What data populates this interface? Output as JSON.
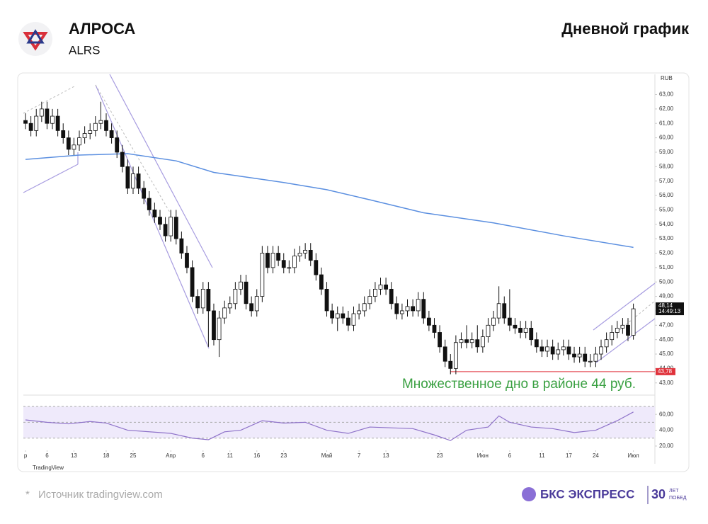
{
  "header": {
    "title": "АЛРОСА",
    "ticker": "ALRS",
    "chart_label": "Дневной график"
  },
  "chart_data": {
    "type": "candlestick",
    "currency": "RUB",
    "open": [
      61.2,
      61.0,
      60.5,
      61.5,
      62.0,
      61.0,
      61.5,
      60.5,
      60.0,
      59.2,
      59.5,
      60.0,
      60.3,
      60.5,
      61.0,
      61.2,
      60.5,
      60.0,
      59.0,
      58.0,
      56.5,
      57.5,
      56.5,
      55.8,
      55.0,
      54.5,
      54.0,
      53.2,
      54.5,
      53.0,
      52.0,
      51.0,
      49.0,
      48.2,
      49.5,
      48.0,
      46.0,
      47.5,
      48.2,
      48.5,
      49.5,
      50.0,
      48.5,
      48.0,
      49.0,
      52.0,
      51.0,
      52.0,
      51.5,
      51.0,
      51.0,
      51.8,
      52.0,
      52.2,
      51.5,
      50.5,
      49.5,
      48.0,
      47.5,
      47.8,
      47.5,
      47.0,
      47.8,
      48.0,
      48.5,
      49.0,
      49.5,
      49.8,
      49.5,
      48.5,
      47.8,
      48.0,
      48.3,
      48.0,
      48.8,
      47.5,
      47.0,
      46.5,
      45.5,
      44.5,
      44.0,
      45.8,
      46.0,
      45.8,
      46.0,
      45.5,
      46.2,
      47.0,
      47.5,
      48.5,
      47.5,
      47.0,
      46.8,
      46.5,
      46.8,
      46.0,
      45.5,
      45.2,
      45.5,
      45.0,
      45.3,
      45.5,
      45.0,
      44.8,
      45.0,
      44.5,
      44.5,
      45.0,
      45.5,
      46.0,
      46.5,
      46.8,
      47.0,
      46.3
    ],
    "high": [
      61.7,
      61.5,
      62.0,
      62.5,
      62.5,
      62.0,
      62.0,
      61.0,
      60.5,
      60.0,
      60.5,
      60.8,
      61.0,
      61.5,
      62.5,
      61.7,
      61.0,
      60.5,
      59.5,
      58.5,
      58.0,
      58.0,
      57.0,
      56.3,
      55.5,
      55.0,
      54.5,
      55.0,
      55.0,
      53.5,
      52.5,
      51.5,
      49.5,
      50.0,
      50.0,
      48.5,
      48.0,
      48.7,
      49.0,
      50.0,
      50.5,
      50.5,
      49.0,
      49.5,
      52.5,
      52.5,
      52.5,
      52.5,
      52.0,
      51.5,
      52.3,
      52.5,
      52.7,
      52.7,
      52.0,
      51.0,
      50.0,
      48.5,
      48.3,
      48.3,
      48.0,
      48.3,
      48.5,
      49.0,
      49.5,
      50.0,
      50.3,
      50.3,
      50.0,
      49.0,
      48.5,
      48.8,
      48.8,
      49.3,
      49.3,
      48.0,
      47.5,
      47.0,
      46.0,
      45.0,
      46.3,
      46.5,
      47.0,
      46.5,
      47.0,
      46.7,
      47.5,
      48.0,
      49.7,
      49.0,
      49.5,
      47.5,
      47.3,
      47.3,
      47.3,
      46.5,
      46.0,
      46.0,
      46.0,
      45.8,
      46.0,
      46.0,
      45.5,
      45.5,
      45.5,
      45.0,
      45.5,
      46.0,
      46.5,
      47.0,
      47.3,
      47.5,
      47.5,
      48.5
    ],
    "low": [
      60.6,
      60.1,
      60.1,
      61.1,
      60.6,
      60.6,
      60.1,
      59.6,
      58.8,
      58.8,
      59.1,
      59.6,
      59.9,
      60.1,
      60.6,
      60.1,
      59.6,
      58.6,
      57.6,
      56.1,
      56.1,
      56.1,
      55.4,
      54.6,
      54.1,
      53.6,
      52.8,
      52.8,
      52.6,
      51.6,
      50.6,
      48.6,
      47.8,
      47.8,
      45.5,
      45.6,
      44.8,
      47.1,
      47.8,
      48.1,
      49.1,
      48.1,
      47.6,
      47.6,
      48.6,
      50.6,
      50.6,
      51.1,
      50.6,
      50.6,
      50.6,
      51.4,
      51.6,
      51.1,
      50.1,
      49.1,
      47.6,
      47.1,
      46.6,
      47.1,
      46.6,
      46.6,
      47.4,
      47.6,
      48.1,
      48.6,
      49.1,
      49.1,
      48.1,
      47.4,
      47.4,
      47.6,
      47.6,
      47.6,
      47.1,
      46.6,
      46.1,
      45.1,
      44.1,
      43.6,
      43.6,
      45.4,
      45.4,
      45.4,
      45.1,
      45.1,
      45.8,
      46.6,
      47.1,
      47.1,
      46.6,
      46.4,
      46.1,
      46.1,
      45.6,
      45.1,
      44.8,
      44.8,
      44.6,
      44.6,
      44.9,
      44.6,
      44.4,
      44.4,
      44.1,
      44.1,
      44.1,
      44.6,
      45.1,
      45.6,
      46.1,
      46.4,
      45.9,
      46.0
    ],
    "close": [
      61.0,
      60.5,
      61.5,
      62.0,
      61.0,
      61.5,
      60.5,
      60.0,
      59.2,
      59.5,
      60.0,
      60.3,
      60.5,
      61.0,
      61.2,
      60.5,
      60.0,
      59.0,
      58.0,
      56.5,
      57.5,
      56.5,
      55.8,
      55.0,
      54.5,
      54.0,
      53.2,
      54.5,
      53.0,
      52.0,
      51.0,
      49.0,
      48.2,
      49.5,
      48.0,
      46.0,
      47.5,
      48.2,
      48.5,
      49.5,
      50.0,
      48.5,
      48.0,
      49.0,
      52.0,
      51.0,
      52.0,
      51.5,
      51.0,
      51.0,
      51.8,
      52.0,
      52.2,
      51.5,
      50.5,
      49.5,
      48.0,
      47.5,
      47.8,
      47.5,
      47.0,
      47.8,
      48.0,
      48.5,
      49.0,
      49.5,
      49.8,
      49.5,
      48.5,
      47.8,
      48.0,
      48.3,
      48.0,
      48.8,
      47.5,
      47.0,
      46.5,
      45.5,
      44.5,
      44.0,
      45.8,
      46.0,
      45.8,
      46.0,
      45.5,
      46.2,
      47.0,
      47.5,
      48.5,
      47.5,
      47.0,
      46.8,
      46.5,
      46.8,
      46.0,
      45.5,
      45.2,
      45.5,
      45.0,
      45.3,
      45.5,
      45.0,
      44.8,
      45.0,
      44.5,
      44.5,
      45.0,
      45.5,
      46.0,
      46.5,
      46.8,
      47.0,
      46.3,
      48.14
    ],
    "xlim": [
      -0.4,
      117
    ],
    "ylim": [
      42.3,
      64.4
    ],
    "yticks": [
      {
        "value": 43,
        "label": "43,00"
      },
      {
        "value": 44,
        "label": "44,00"
      },
      {
        "value": 45,
        "label": "45,00"
      },
      {
        "value": 46,
        "label": "46,00"
      },
      {
        "value": 47,
        "label": "47,00"
      },
      {
        "value": 48,
        "label": "48,00"
      },
      {
        "value": 49,
        "label": "49,00"
      },
      {
        "value": 50,
        "label": "50,00"
      },
      {
        "value": 51,
        "label": "51,00"
      },
      {
        "value": 52,
        "label": "52,00"
      },
      {
        "value": 53,
        "label": "53,00"
      },
      {
        "value": 54,
        "label": "54,00"
      },
      {
        "value": 55,
        "label": "55,00"
      },
      {
        "value": 56,
        "label": "56,00"
      },
      {
        "value": 57,
        "label": "57,00"
      },
      {
        "value": 58,
        "label": "58,00"
      },
      {
        "value": 59,
        "label": "59,00"
      },
      {
        "value": 60,
        "label": "60,00"
      },
      {
        "value": 61,
        "label": "61,00"
      },
      {
        "value": 62,
        "label": "62,00"
      },
      {
        "value": 63,
        "label": "63,00"
      }
    ],
    "xticks": [
      {
        "value": 0,
        "label": "р"
      },
      {
        "value": 4,
        "label": "6"
      },
      {
        "value": 9,
        "label": "13"
      },
      {
        "value": 15,
        "label": "18"
      },
      {
        "value": 20,
        "label": "25"
      },
      {
        "value": 27,
        "label": "Апр"
      },
      {
        "value": 33,
        "label": "6"
      },
      {
        "value": 38,
        "label": "11"
      },
      {
        "value": 43,
        "label": "16"
      },
      {
        "value": 48,
        "label": "23"
      },
      {
        "value": 56,
        "label": "Май"
      },
      {
        "value": 62,
        "label": "7"
      },
      {
        "value": 67,
        "label": "13"
      },
      {
        "value": 77,
        "label": "23"
      },
      {
        "value": 85,
        "label": "Июн"
      },
      {
        "value": 90,
        "label": "6"
      },
      {
        "value": 96,
        "label": "11"
      },
      {
        "value": 101,
        "label": "17"
      },
      {
        "value": 106,
        "label": "24"
      },
      {
        "value": 113,
        "label": "Июл"
      }
    ],
    "last_price": {
      "value": 48.14,
      "label": "48,14"
    },
    "time": "14:49:13",
    "level": {
      "value": 43.78,
      "label": "43,78"
    },
    "annotation": "Множественное дно в районе 44 руб.",
    "ma": {
      "color": "#5b8fe0",
      "x": [
        0,
        10,
        19,
        28,
        35,
        48,
        56,
        64,
        74,
        87,
        100,
        113
      ],
      "values": [
        58.5,
        58.8,
        58.9,
        58.4,
        57.6,
        56.9,
        56.4,
        55.7,
        54.8,
        54.1,
        53.2,
        52.4
      ]
    },
    "rsi": {
      "color": "#8e72c9",
      "x": [
        0,
        4,
        8,
        12,
        15,
        19,
        23,
        27,
        31,
        34,
        37,
        40,
        44,
        48,
        52,
        56,
        60,
        64,
        68,
        72,
        76,
        79,
        82,
        86,
        88,
        90,
        94,
        98,
        102,
        106,
        110,
        113
      ],
      "values": [
        53,
        50,
        48,
        51,
        49,
        40,
        38,
        36,
        30,
        28,
        38,
        40,
        52,
        49,
        50,
        40,
        36,
        44,
        43,
        42,
        34,
        27,
        40,
        44,
        58,
        50,
        44,
        42,
        37,
        40,
        52,
        63
      ],
      "ylim": [
        11,
        78
      ],
      "bands": [
        30,
        50,
        70
      ],
      "yticks": [
        {
          "value": 20,
          "label": "20,00"
        },
        {
          "value": 40,
          "label": "40,00"
        },
        {
          "value": 60,
          "label": "60,00"
        }
      ]
    }
  },
  "footer": {
    "mark": "*",
    "source": "Источник tradingview.com",
    "brand": "БКС ЭКСПРЕСС",
    "years": "30",
    "years_text1": "ЛЕТ",
    "years_text2": "ПОБЕД",
    "tv": "TradingView"
  }
}
